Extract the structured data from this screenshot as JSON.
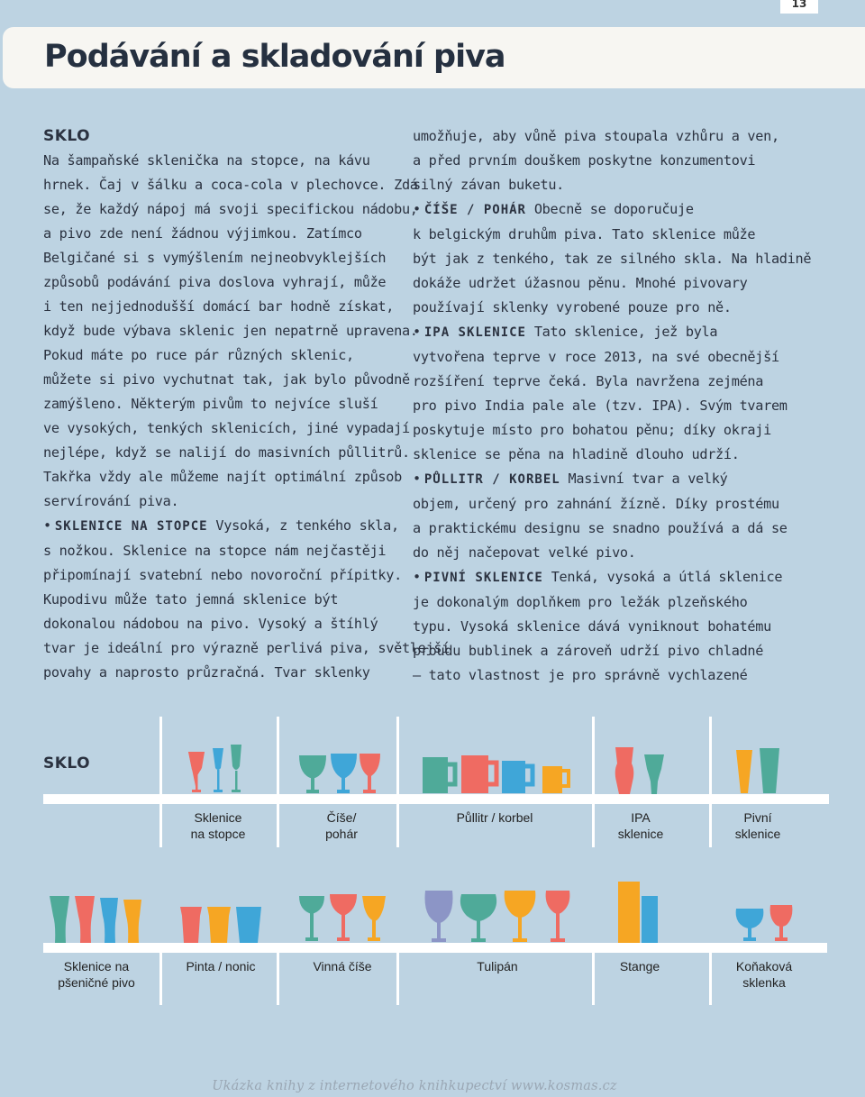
{
  "page_number": "13",
  "title": "Podávání a skladování piva",
  "left_column": {
    "heading": "SKLO",
    "lines": [
      "Na šampaňské sklenička na stopce, na kávu",
      "hrnek. Čaj v šálku a coca-cola v plechovce. Zdá",
      "se, že každý nápoj má svoji specifickou nádobu,",
      "a pivo zde není žádnou výjimkou. Zatímco",
      "Belgičané si s vymýšlením nejneobvyklejších",
      "způsobů podávání piva doslova vyhrají, může",
      "i ten nejjednodušší domácí bar hodně získat,",
      "když bude výbava sklenic jen nepatrně upravena.",
      "Pokud máte po ruce pár různých sklenic,",
      "můžete si pivo vychutnat tak, jak bylo původně",
      "zamýšleno. Některým pivům to nejvíce sluší",
      "ve vysokých, tenkých sklenicích, jiné vypadají",
      "nejlépe, když se nalijí do masivních půllitrů.",
      "Takřka vždy ale můžeme najít optimální způsob",
      "servírování piva."
    ],
    "bullet_term": "SKLENICE NA STOPCE",
    "bullet_first": " Vysoká, z tenkého skla,",
    "bullet_lines": [
      "s nožkou. Sklenice na stopce nám nejčastěji",
      "připomínají svatební nebo novoroční přípitky.",
      "Kupodivu může tato jemná sklenice být",
      "dokonalou nádobou na pivo. Vysoký a štíhlý",
      "tvar je ideální pro výrazně perlivá piva, světlejší",
      "povahy a naprosto průzračná. Tvar sklenky"
    ]
  },
  "right_column": {
    "lines_top": [
      "umožňuje, aby vůně piva stoupala vzhůru a ven,",
      "a před prvním douškem poskytne konzumentovi",
      "silný závan buketu."
    ],
    "b1_term": "ČÍŠE / POHÁR",
    "b1_first": " Obecně se doporučuje",
    "b1_lines": [
      "k belgickým druhům piva. Tato sklenice může",
      "být jak z tenkého, tak ze silného skla. Na hladině",
      "dokáže udržet úžasnou pěnu. Mnohé pivovary",
      "používají sklenky vyrobené pouze pro ně."
    ],
    "b2_term": "IPA SKLENICE",
    "b2_first": " Tato sklenice, jež byla",
    "b2_lines": [
      "vytvořena teprve v roce 2013, na své obecnější",
      "rozšíření teprve čeká. Byla navržena zejména",
      "pro pivo India pale ale (tzv. IPA). Svým tvarem",
      "poskytuje místo pro bohatou pěnu; díky okraji",
      "sklenice se pěna na hladině dlouho udrží."
    ],
    "b3_term": "PŮLLITR / KORBEL",
    "b3_first": " Masivní tvar a velký",
    "b3_lines": [
      "objem, určený pro zahnání žízně. Díky prostému",
      "a praktickému designu se snadno používá a dá se",
      "do něj načepovat velké pivo."
    ],
    "b4_term": "PIVNÍ SKLENICE",
    "b4_first": " Tenká, vysoká a útlá sklenice",
    "b4_lines": [
      "je dokonalým doplňkem pro ležák plzeňského",
      "typu. Vysoká sklenice dává vyniknout bohatému",
      "proudu bublinek a zároveň udrží pivo chladné",
      "– tato vlastnost je pro správně vychlazené"
    ]
  },
  "figure": {
    "label": "SKLO",
    "row1": [
      {
        "l1": "Sklenice",
        "l2": "na stopce"
      },
      {
        "l1": "Číše/",
        "l2": "pohár"
      },
      {
        "l1": "Půllitr / korbel",
        "l2": ""
      },
      {
        "l1": "IPA",
        "l2": "sklenice"
      },
      {
        "l1": "Pivní",
        "l2": "sklenice"
      }
    ],
    "row2": [
      {
        "l1": "Sklenice na",
        "l2": "pšeničné pivo"
      },
      {
        "l1": "Pinta / nonic",
        "l2": ""
      },
      {
        "l1": "Vinná číše",
        "l2": ""
      },
      {
        "l1": "Tulipán",
        "l2": ""
      },
      {
        "l1": "Stange",
        "l2": ""
      },
      {
        "l1": "Koňaková",
        "l2": "sklenka"
      }
    ]
  },
  "colors": {
    "background": "#bdd3e2",
    "coral": "#ef6b62",
    "teal": "#4faa99",
    "blue": "#3fa6d8",
    "orange": "#f6a623",
    "purple": "#8c95c6"
  },
  "footer": "Ukázka knihy z internetového knihkupectví www.kosmas.cz"
}
